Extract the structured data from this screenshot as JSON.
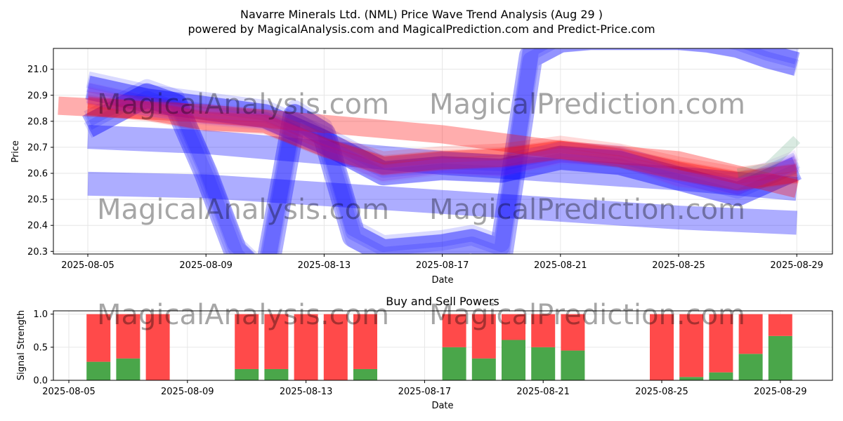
{
  "header": {
    "title": "Navarre Minerals Ltd. (NML) Price Wave Trend Analysis (Aug 29 )",
    "subtitle": "powered by MagicalAnalysis.com and MagicalPrediction.com and Predict-Price.com"
  },
  "watermarks": [
    "MagicalAnalysis.com",
    "MagicalPrediction.com"
  ],
  "colors": {
    "blue_band": "#0000ff",
    "red_band": "#ff0000",
    "purple_band": "#8a2be2",
    "green_band": "#2e8b57",
    "buy": "#4aa64a",
    "sell": "#ff4a4a"
  },
  "chart_data": [
    {
      "type": "line",
      "title": "",
      "xlabel": "Date",
      "ylabel": "Price",
      "x_ticks": [
        "2025-08-05",
        "2025-08-09",
        "2025-08-13",
        "2025-08-17",
        "2025-08-21",
        "2025-08-25",
        "2025-08-29"
      ],
      "y_ticks": [
        "20.3",
        "20.4",
        "20.5",
        "20.6",
        "20.7",
        "20.8",
        "20.9",
        "21.0"
      ],
      "xlim": [
        "2025-08-03.7",
        "2025-08-30.4"
      ],
      "ylim": [
        20.29,
        21.08
      ],
      "grid": true,
      "series": [
        {
          "color": "blue",
          "x": [
            "2025-08-05",
            "2025-08-07",
            "2025-08-08",
            "2025-08-09",
            "2025-08-10",
            "2025-08-11",
            "2025-08-12",
            "2025-08-13",
            "2025-08-14",
            "2025-08-15",
            "2025-08-16",
            "2025-08-17",
            "2025-08-18",
            "2025-08-19",
            "2025-08-20",
            "2025-08-21",
            "2025-08-22",
            "2025-08-23",
            "2025-08-24",
            "2025-08-25",
            "2025-08-26",
            "2025-08-27",
            "2025-08-28",
            "2025-08-29"
          ],
          "y": [
            20.78,
            20.9,
            20.86,
            20.6,
            20.3,
            20.19,
            20.82,
            20.75,
            20.36,
            20.3,
            20.31,
            20.32,
            20.34,
            20.3,
            21.05,
            21.11,
            21.12,
            21.12,
            21.12,
            21.12,
            21.11,
            21.09,
            21.05,
            21.02
          ]
        },
        {
          "color": "blue",
          "x": [
            "2025-08-05",
            "2025-08-09",
            "2025-08-13",
            "2025-08-17",
            "2025-08-21",
            "2025-08-25",
            "2025-08-29"
          ],
          "y": [
            20.56,
            20.55,
            20.52,
            20.49,
            20.46,
            20.43,
            20.41
          ]
        },
        {
          "color": "blue",
          "x": [
            "2025-08-05",
            "2025-08-09",
            "2025-08-13",
            "2025-08-17",
            "2025-08-21",
            "2025-08-25",
            "2025-08-29"
          ],
          "y": [
            20.74,
            20.72,
            20.68,
            20.64,
            20.61,
            20.58,
            20.54
          ]
        },
        {
          "color": "blue",
          "x": [
            "2025-08-05",
            "2025-08-07",
            "2025-08-09",
            "2025-08-11",
            "2025-08-13",
            "2025-08-15",
            "2025-08-17",
            "2025-08-19",
            "2025-08-21",
            "2025-08-23",
            "2025-08-25",
            "2025-08-27",
            "2025-08-29"
          ],
          "y": [
            20.93,
            20.88,
            20.85,
            20.82,
            20.72,
            20.6,
            20.62,
            20.61,
            20.66,
            20.64,
            20.58,
            20.52,
            20.62
          ]
        },
        {
          "color": "red",
          "x": [
            "2025-08-04",
            "2025-08-09",
            "2025-08-13",
            "2025-08-17",
            "2025-08-21",
            "2025-08-25",
            "2025-08-29"
          ],
          "y": [
            20.86,
            20.83,
            20.79,
            20.75,
            20.69,
            20.65,
            20.54
          ]
        },
        {
          "color": "red",
          "x": [
            "2025-08-05",
            "2025-08-07",
            "2025-08-09",
            "2025-08-11",
            "2025-08-13",
            "2025-08-15",
            "2025-08-17",
            "2025-08-19",
            "2025-08-21",
            "2025-08-23",
            "2025-08-25",
            "2025-08-27",
            "2025-08-29"
          ],
          "y": [
            20.86,
            20.84,
            20.8,
            20.79,
            20.7,
            20.63,
            20.65,
            20.66,
            20.69,
            20.66,
            20.61,
            20.57,
            20.6
          ]
        },
        {
          "color": "purple",
          "x": [
            "2025-08-05",
            "2025-08-07",
            "2025-08-09",
            "2025-08-11",
            "2025-08-13",
            "2025-08-15",
            "2025-08-17",
            "2025-08-19",
            "2025-08-21",
            "2025-08-23",
            "2025-08-25",
            "2025-08-27",
            "2025-08-29"
          ],
          "y": [
            20.9,
            20.85,
            20.82,
            20.8,
            20.7,
            20.6,
            20.63,
            20.62,
            20.67,
            20.66,
            20.58,
            20.55,
            20.64
          ]
        },
        {
          "color": "green",
          "x": [
            "2025-08-27",
            "2025-08-28",
            "2025-08-29"
          ],
          "y": [
            20.6,
            20.62,
            20.73
          ]
        }
      ]
    },
    {
      "type": "bar",
      "title": "Buy and Sell Powers",
      "xlabel": "Date",
      "ylabel": "Signal Strength",
      "x_ticks": [
        "2025-08-05",
        "2025-08-09",
        "2025-08-13",
        "2025-08-17",
        "2025-08-21",
        "2025-08-25",
        "2025-08-29"
      ],
      "y_ticks": [
        "0.0",
        "0.5",
        "1.0"
      ],
      "ylim": [
        0,
        1.05
      ],
      "grid": true,
      "categories": [
        "2025-08-06",
        "2025-08-07",
        "2025-08-08",
        "2025-08-11",
        "2025-08-12",
        "2025-08-13",
        "2025-08-14",
        "2025-08-15",
        "2025-08-18",
        "2025-08-19",
        "2025-08-20",
        "2025-08-21",
        "2025-08-22",
        "2025-08-25",
        "2025-08-26",
        "2025-08-27",
        "2025-08-28",
        "2025-08-29"
      ],
      "series": [
        {
          "name": "Buy",
          "values": [
            0.28,
            0.33,
            0.0,
            0.17,
            0.17,
            0.0,
            0.0,
            0.17,
            0.5,
            0.33,
            0.61,
            0.5,
            0.45,
            0.0,
            0.05,
            0.12,
            0.4,
            0.67
          ]
        },
        {
          "name": "Sell",
          "values": [
            0.72,
            0.67,
            1.0,
            0.83,
            0.83,
            1.0,
            1.0,
            0.83,
            0.5,
            0.67,
            0.39,
            0.5,
            0.55,
            1.0,
            0.95,
            0.88,
            0.6,
            0.33
          ]
        }
      ]
    }
  ]
}
